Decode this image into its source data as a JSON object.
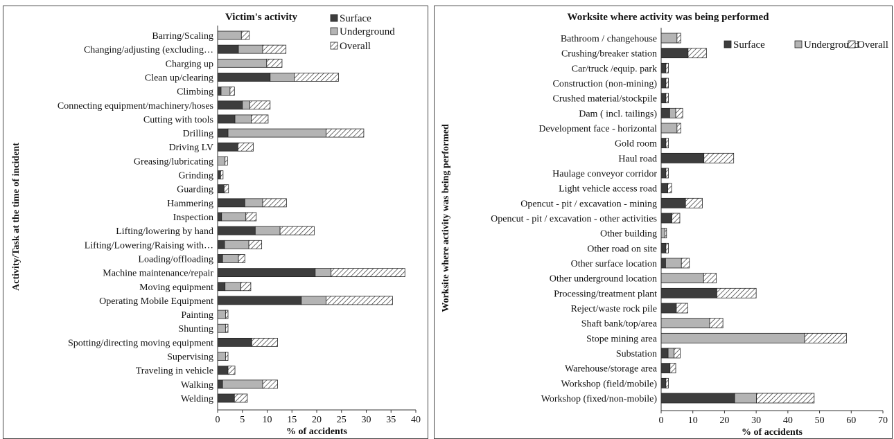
{
  "patterns": {
    "surface": "#3d3d3d",
    "underground": "#b4b4b4",
    "overall_hatch": "#222222",
    "overall_bg": "#ffffff"
  },
  "chart_data": [
    {
      "type": "bar",
      "stacked": true,
      "orientation": "horizontal",
      "title": "Victim's activity",
      "xlabel": "% of accidents",
      "ylabel": "Activity/Task at the time of incident",
      "xlim": [
        0,
        40
      ],
      "xticks": [
        0,
        5,
        10,
        15,
        20,
        25,
        30,
        35,
        40
      ],
      "legend_position": "top-right",
      "categories": [
        "Barring/Scaling",
        "Changing/adjusting (excluding…",
        "Charging up",
        "Clean up/clearing",
        "Climbing",
        "Connecting equipment/machinery/hoses",
        "Cutting with tools",
        "Drilling",
        "Driving LV",
        "Greasing/lubricating",
        "Grinding",
        "Guarding",
        "Hammering",
        "Inspection",
        "Lifting/lowering by hand",
        "Lifting/Lowering/Raising with…",
        "Loading/offloading",
        "Machine maintenance/repair",
        "Moving equipment",
        "Operating Mobile Equipment",
        "Painting",
        "Shunting",
        "Spotting/directing moving equipment",
        "Supervising",
        "Traveling in vehicle",
        "Walking",
        "Welding"
      ],
      "series": [
        {
          "name": "Surface",
          "values": [
            0,
            4.2,
            0,
            10.6,
            0.7,
            5,
            3.5,
            2.1,
            4.1,
            0,
            0.6,
            1.3,
            5.5,
            0.8,
            7.6,
            1.4,
            1,
            19.7,
            1.5,
            16.9,
            0,
            0,
            6.9,
            0,
            2.1,
            1,
            3.4
          ]
        },
        {
          "name": "Underground",
          "values": [
            4.8,
            4.9,
            9.9,
            4.9,
            1.8,
            1.5,
            3.3,
            19.8,
            0,
            1.5,
            0,
            0,
            3.6,
            4.9,
            5,
            4.9,
            3.2,
            3.2,
            3.2,
            5,
            1.6,
            1.6,
            0,
            1.6,
            0,
            8.1,
            0
          ]
        },
        {
          "name": "Overall",
          "values": [
            1.6,
            4.7,
            3.1,
            8.9,
            0.9,
            4.1,
            3.4,
            7.6,
            3.1,
            0.5,
            0.5,
            0.9,
            4.8,
            2.1,
            6.9,
            2.6,
            1.3,
            14.9,
            2,
            13.4,
            0.5,
            0.5,
            5.2,
            0.5,
            1.4,
            3,
            2.6
          ]
        }
      ]
    },
    {
      "type": "bar",
      "stacked": true,
      "orientation": "horizontal",
      "title": "Worksite where activity was being performed",
      "xlabel": "% of accidents",
      "ylabel": "Worksite where activity was being performed",
      "xlim": [
        0,
        70
      ],
      "xticks": [
        0,
        10,
        20,
        30,
        40,
        50,
        60,
        70
      ],
      "legend_position": "top-right",
      "categories": [
        "Bathroom / changehouse",
        "Crushing/breaker station",
        "Car/truck /equip. park",
        "Construction (non-mining)",
        "Crushed material/stockpile",
        "Dam ( incl. tailings)",
        "Development face - horizontal",
        "Gold room",
        "Haul road",
        "Haulage conveyor corridor",
        "Light vehicle access road",
        "Opencut - pit / excavation - mining",
        "Opencut - pit / excavation - other activities",
        "Other building",
        "Other road on site",
        "Other surface location",
        "Other underground location",
        "Processing/treatment plant",
        "Reject/waste rock pile",
        "Shaft bank/top/area",
        "Stope mining area",
        "Substation",
        "Warehouse/storage area",
        "Workshop (field/mobile)",
        "Workshop (fixed/non-mobile)"
      ],
      "series": [
        {
          "name": "Surface",
          "values": [
            0,
            8.5,
            1.5,
            1.5,
            1.5,
            2.7,
            0,
            1.5,
            13.5,
            1.5,
            2.1,
            7.7,
            3.4,
            0,
            1.5,
            1.4,
            0,
            17.6,
            4.8,
            0,
            0,
            2.2,
            2.8,
            1.5,
            23.2
          ]
        },
        {
          "name": "Underground",
          "values": [
            5,
            0,
            0,
            0,
            0,
            1.9,
            5,
            0,
            0,
            0,
            0,
            0,
            0,
            1.2,
            0,
            5,
            13.4,
            0,
            0,
            15.3,
            45.3,
            1.9,
            0,
            0,
            6.9
          ]
        },
        {
          "name": "Overall",
          "values": [
            1.2,
            5.8,
            0.8,
            0.8,
            0.8,
            2.2,
            1.2,
            0.8,
            9.4,
            0.8,
            1.2,
            5.3,
            2.5,
            0.5,
            0.8,
            2.5,
            4,
            12.4,
            3.6,
            4.2,
            13.2,
            1.9,
            1.8,
            0.8,
            18.2
          ]
        }
      ]
    }
  ]
}
